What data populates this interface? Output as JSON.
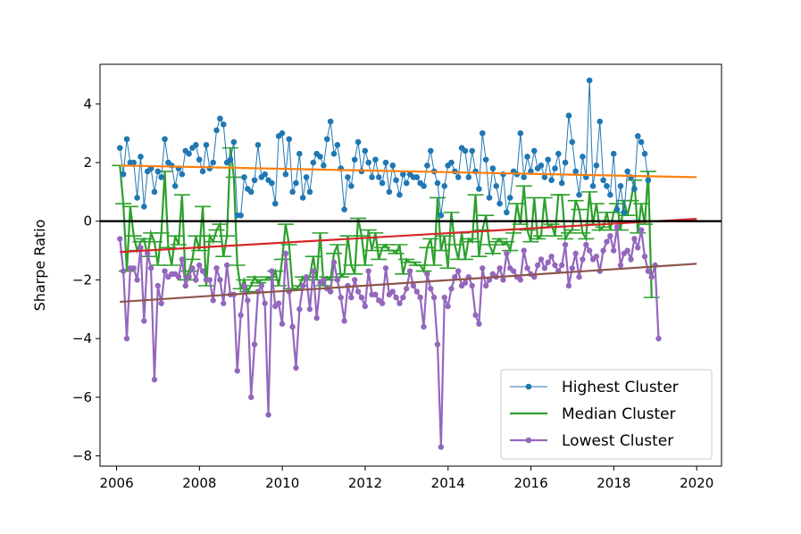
{
  "chart_data": {
    "type": "line",
    "title": "",
    "xlabel": "",
    "ylabel": "Sharpe Ratio",
    "xlim": [
      2005.6,
      2020.6
    ],
    "ylim": [
      -8.35,
      5.35
    ],
    "xticks": [
      2006,
      2008,
      2010,
      2012,
      2014,
      2016,
      2018,
      2020
    ],
    "yticks": [
      -8,
      -6,
      -4,
      -2,
      0,
      2,
      4
    ],
    "x_start": 2006.08,
    "x_step": 0.0833333,
    "legend_position": "lower-right",
    "reference_line": {
      "y": 0,
      "color": "#000000"
    },
    "series": [
      {
        "name": "Highest Cluster",
        "color": "#1f77b4",
        "values": [
          2.5,
          1.6,
          2.8,
          2.0,
          2.0,
          0.8,
          2.2,
          0.5,
          1.7,
          1.8,
          1.0,
          1.7,
          1.5,
          2.8,
          2.0,
          1.9,
          1.2,
          1.8,
          1.6,
          2.4,
          2.3,
          2.5,
          2.6,
          2.1,
          1.7,
          2.6,
          1.8,
          2.0,
          3.1,
          3.5,
          3.3,
          2.0,
          2.1,
          2.7,
          0.2,
          0.2,
          1.5,
          1.1,
          1.0,
          1.4,
          2.6,
          1.5,
          1.6,
          1.4,
          1.3,
          0.6,
          2.9,
          3.0,
          1.6,
          2.8,
          1.0,
          1.3,
          2.3,
          0.8,
          1.5,
          1.0,
          2.0,
          2.3,
          2.2,
          1.9,
          2.8,
          3.4,
          2.3,
          2.6,
          1.8,
          0.4,
          1.5,
          1.2,
          2.1,
          2.7,
          1.7,
          2.4,
          2.0,
          1.5,
          2.1,
          1.5,
          1.3,
          2.0,
          1.0,
          1.9,
          1.4,
          0.9,
          1.6,
          1.3,
          1.6,
          1.5,
          1.5,
          1.3,
          1.2,
          1.9,
          2.4,
          1.7,
          1.3,
          0.2,
          1.2,
          1.9,
          2.0,
          1.7,
          1.5,
          2.5,
          2.4,
          1.5,
          2.4,
          1.7,
          1.1,
          3.0,
          2.1,
          0.8,
          1.8,
          1.2,
          0.6,
          1.6,
          0.3,
          0.8,
          1.7,
          1.6,
          3.0,
          1.5,
          2.2,
          1.7,
          2.4,
          1.8,
          1.9,
          1.5,
          2.1,
          1.4,
          1.8,
          2.3,
          1.3,
          2.0,
          3.6,
          2.7,
          1.7,
          0.9,
          2.2,
          1.5,
          4.8,
          1.2,
          1.9,
          3.4,
          1.4,
          1.2,
          0.9,
          2.3,
          0.4,
          1.2,
          0.3,
          1.7,
          1.5,
          1.1,
          2.9,
          2.7,
          2.3,
          1.4
        ]
      },
      {
        "name": "Median Cluster",
        "color": "#2ca02c",
        "values": [
          1.9,
          0.6,
          -1.7,
          0.5,
          -0.5,
          -1.0,
          -0.7,
          -0.6,
          -1.2,
          -0.4,
          -0.7,
          -1.5,
          -0.4,
          1.7,
          -0.9,
          -1.5,
          -0.5,
          -0.8,
          0.9,
          -2.0,
          -1.7,
          -1.3,
          -0.5,
          -1.0,
          0.5,
          -2.2,
          -0.5,
          -0.7,
          -0.3,
          -0.1,
          -1.2,
          -0.5,
          2.5,
          1.5,
          -1.5,
          -2.3,
          -2.0,
          -2.4,
          -2.2,
          -1.9,
          -2.1,
          -2.0,
          -2.0,
          -1.9,
          -2.0,
          -1.7,
          -2.2,
          -1.3,
          -0.1,
          -0.8,
          -2.3,
          -2.3,
          -2.2,
          -1.9,
          -2.0,
          -1.9,
          -1.2,
          -2.0,
          -0.4,
          -2.2,
          -1.9,
          -2.0,
          -1.1,
          -0.8,
          -1.9,
          -1.8,
          -0.5,
          -1.5,
          -1.8,
          0.1,
          -0.5,
          -1.5,
          -0.3,
          -1.0,
          -0.4,
          -1.3,
          -0.9,
          -0.8,
          -1.0,
          -1.0,
          -1.1,
          -0.8,
          -1.8,
          -1.3,
          -1.4,
          -1.4,
          -1.5,
          -1.5,
          -1.7,
          -0.9,
          -0.6,
          -1.5,
          0.8,
          -1.0,
          -0.5,
          -1.6,
          0.3,
          -0.8,
          -1.3,
          -0.4,
          -1.3,
          -0.6,
          -0.7,
          0.9,
          -1.2,
          -0.3,
          0.2,
          -0.8,
          -1.1,
          -0.7,
          -0.6,
          -0.8,
          -0.7,
          -1.0,
          -0.4,
          0.6,
          -0.1,
          1.2,
          -0.3,
          -0.7,
          0.8,
          -0.6,
          -0.5,
          0.8,
          -0.2,
          -0.1,
          -0.5,
          0.9,
          0.9,
          -0.6,
          -0.4,
          -0.3,
          0.7,
          0.4,
          -0.4,
          -0.6,
          1.0,
          -0.1,
          0.6,
          -0.3,
          -0.2,
          0.3,
          -0.3,
          0.3,
          0.6,
          -0.3,
          0.7,
          0.2,
          0.7,
          1.4,
          -0.4,
          0.6,
          -0.1,
          1.7,
          -2.6
        ]
      },
      {
        "name": "Lowest Cluster",
        "color": "#9467bd",
        "values": [
          -0.6,
          -1.7,
          -4.0,
          -1.6,
          -1.6,
          -2.0,
          -0.9,
          -3.4,
          -1.1,
          -1.6,
          -5.4,
          -2.2,
          -2.8,
          -1.7,
          -1.9,
          -1.8,
          -1.8,
          -1.9,
          -1.3,
          -2.2,
          -1.9,
          -1.6,
          -2.0,
          -1.5,
          -1.7,
          -2.0,
          -2.0,
          -2.7,
          -1.6,
          -2.0,
          -2.8,
          -1.5,
          -2.5,
          -2.5,
          -5.1,
          -3.2,
          -2.2,
          -2.7,
          -6.0,
          -4.2,
          -2.4,
          -2.2,
          -2.8,
          -6.6,
          -1.7,
          -2.9,
          -2.8,
          -3.5,
          -1.1,
          -2.4,
          -3.6,
          -5.0,
          -3.0,
          -2.2,
          -1.9,
          -3.0,
          -1.7,
          -3.3,
          -2.1,
          -2.0,
          -2.3,
          -2.4,
          -1.4,
          -2.0,
          -2.6,
          -3.4,
          -2.2,
          -2.6,
          -2.0,
          -2.4,
          -2.6,
          -2.9,
          -1.7,
          -2.5,
          -2.5,
          -2.7,
          -2.8,
          -1.6,
          -2.5,
          -2.4,
          -2.6,
          -2.8,
          -2.6,
          -2.3,
          -1.7,
          -2.2,
          -2.4,
          -2.6,
          -3.6,
          -1.8,
          -2.3,
          -2.6,
          -4.2,
          -7.7,
          -2.6,
          -2.9,
          -2.3,
          -1.9,
          -1.7,
          -2.2,
          -2.1,
          -1.9,
          -2.2,
          -3.2,
          -3.5,
          -1.6,
          -2.2,
          -2.0,
          -1.8,
          -1.9,
          -1.6,
          -2.0,
          -1.1,
          -1.6,
          -1.7,
          -1.9,
          -2.0,
          -1.0,
          -1.6,
          -1.8,
          -1.9,
          -1.5,
          -1.3,
          -1.6,
          -1.4,
          -1.2,
          -1.5,
          -1.7,
          -1.5,
          -0.8,
          -2.2,
          -1.6,
          -1.1,
          -1.9,
          -1.3,
          -0.8,
          -1.0,
          -1.3,
          -1.2,
          -1.7,
          -1.0,
          -0.7,
          -0.5,
          -1.0,
          -0.2,
          -1.5,
          -1.1,
          -1.0,
          -1.3,
          -0.6,
          -0.9,
          -0.3,
          -1.2,
          -1.7,
          -1.9,
          -1.5,
          -4.0
        ]
      }
    ],
    "trend_lines": [
      {
        "name": "highest-trend",
        "color": "#ff7f0e",
        "x": [
          2006.08,
          2020.0
        ],
        "y": [
          1.9,
          1.5
        ]
      },
      {
        "name": "median-trend",
        "color": "#d62728",
        "x": [
          2006.08,
          2020.0
        ],
        "y": [
          -1.05,
          0.08
        ]
      },
      {
        "name": "lowest-trend",
        "color": "#8c564b",
        "x": [
          2006.08,
          2020.0
        ],
        "y": [
          -2.75,
          -1.45
        ]
      }
    ]
  }
}
